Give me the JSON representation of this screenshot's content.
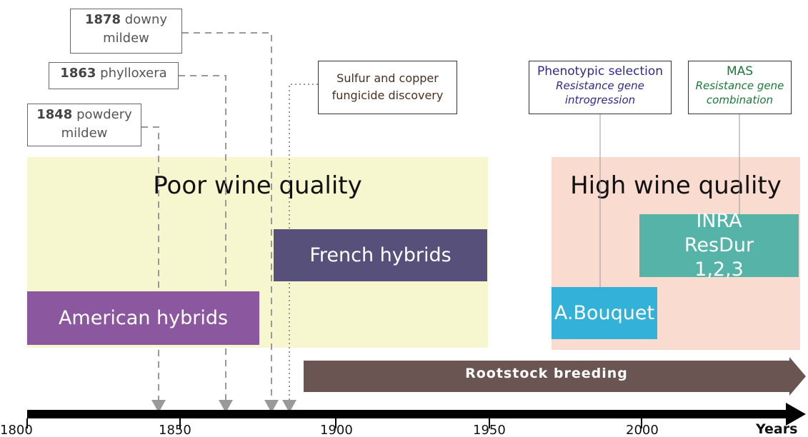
{
  "events": [
    {
      "year": "1878",
      "label": "downy mildew"
    },
    {
      "year": "1863",
      "label": "phylloxera"
    },
    {
      "year": "1848",
      "label": "powdery mildew"
    }
  ],
  "milestone": "Sulfur and copper fungicide discovery",
  "methods": [
    {
      "title": "Phenotypic selection",
      "subtitle": "Resistance gene introgression"
    },
    {
      "title": "MAS",
      "subtitle": "Resistance gene combination"
    }
  ],
  "regions": [
    "Poor wine quality",
    "High wine quality"
  ],
  "varieties": [
    "American hybrids",
    "French hybrids",
    "A.Bouquet",
    "INRA ResDur 1,2,3"
  ],
  "rootstock": "Rootstock breeding",
  "axis": {
    "ticks": [
      "1800",
      "1850",
      "1900",
      "1950",
      "2000"
    ],
    "unit": "Years"
  }
}
